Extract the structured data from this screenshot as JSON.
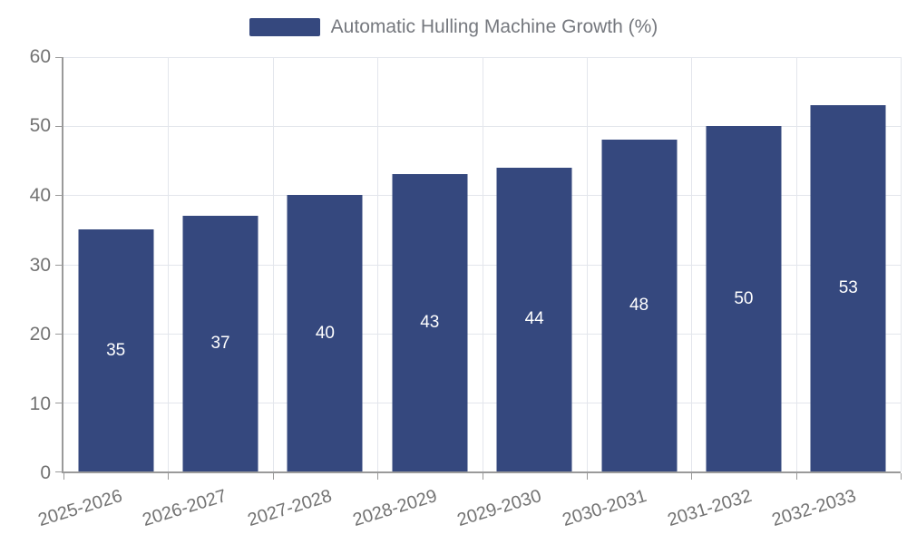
{
  "legend": {
    "label": "Automatic Hulling Machine Growth (%)"
  },
  "chart_data": {
    "type": "bar",
    "title": "",
    "xlabel": "",
    "ylabel": "",
    "categories": [
      "2025-2026",
      "2026-2027",
      "2027-2028",
      "2028-2029",
      "2029-2030",
      "2030-2031",
      "2031-2032",
      "2032-2033"
    ],
    "series": [
      {
        "name": "Automatic Hulling Machine Growth (%)",
        "values": [
          35,
          37,
          40,
          43,
          44,
          48,
          50,
          53
        ]
      }
    ],
    "ylim": [
      0,
      60
    ],
    "yticks": [
      0,
      10,
      20,
      30,
      40,
      50,
      60
    ],
    "grid": true,
    "legend_position": "top",
    "bar_labels_inside": true,
    "colors": {
      "bar": "#35487e",
      "bar_label": "#ffffff",
      "gridline": "#e3e6ec",
      "axis_line": "#9a9a9a",
      "tick_label": "#737373",
      "legend_text": "#75787e",
      "background": "#ffffff"
    }
  }
}
